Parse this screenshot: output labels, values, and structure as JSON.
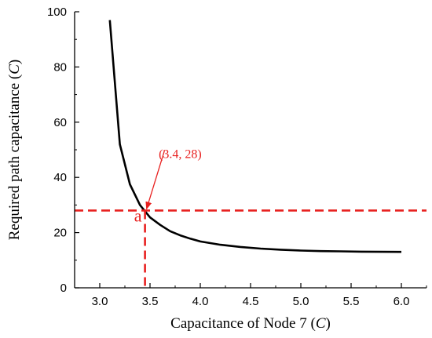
{
  "chart_data": {
    "type": "line",
    "title": "",
    "xlabel": {
      "prefix": "Capacitance of Node 7 (",
      "var": "C",
      "suffix": ")"
    },
    "ylabel": {
      "prefix": "Required path capacitance (",
      "var": "C",
      "suffix": ")"
    },
    "xlim": [
      2.75,
      6.25
    ],
    "ylim": [
      0,
      100
    ],
    "x_ticks": [
      3.0,
      3.5,
      4.0,
      4.5,
      5.0,
      5.5,
      6.0
    ],
    "x_tick_labels": [
      "3.0",
      "3.5",
      "4.0",
      "4.5",
      "5.0",
      "5.5",
      "6.0"
    ],
    "y_ticks": [
      0,
      20,
      40,
      60,
      80,
      100
    ],
    "y_tick_labels": [
      "0",
      "20",
      "40",
      "60",
      "80",
      "100"
    ],
    "grid": false,
    "series": [
      {
        "color": "#000000",
        "x": [
          3.1,
          3.2,
          3.3,
          3.4,
          3.5,
          3.6,
          3.7,
          3.8,
          3.9,
          4.0,
          4.2,
          4.4,
          4.6,
          4.8,
          5.0,
          5.2,
          5.4,
          5.6,
          5.8,
          6.0
        ],
        "y": [
          97,
          52,
          37.5,
          30,
          25.5,
          22.8,
          20.5,
          19,
          17.8,
          16.8,
          15.6,
          14.8,
          14.2,
          13.8,
          13.5,
          13.3,
          13.2,
          13.1,
          13.05,
          13
        ]
      }
    ],
    "annotations": [
      {
        "text": "(3.4, 28)",
        "color": "#e8201f",
        "point": [
          3.45,
          28
        ],
        "text_anchor": [
          3.3,
          48
        ],
        "label_at": [
          3.8,
          47
        ]
      },
      {
        "text": "a",
        "color": "#e8201f",
        "label_at": [
          3.38,
          24
        ]
      }
    ],
    "reference_lines": [
      {
        "orientation": "horizontal",
        "value": 28,
        "color": "#e8201f",
        "style": "dashed"
      },
      {
        "orientation": "vertical",
        "value": 3.45,
        "color": "#e8201f",
        "style": "dashed"
      }
    ]
  }
}
